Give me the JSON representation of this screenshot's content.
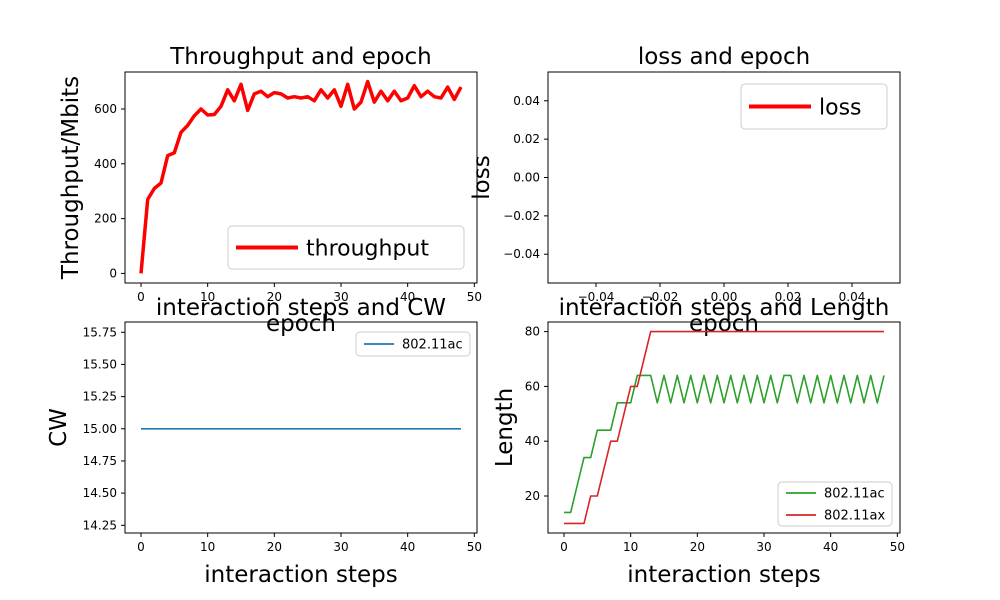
{
  "chart_data": [
    {
      "type": "line",
      "title": "Throughput and epoch",
      "xlabel": "epoch",
      "ylabel": "Throughput/Mbits",
      "xlim": [
        -2.4,
        50.4
      ],
      "ylim": [
        -35,
        735
      ],
      "xticks": [
        0,
        10,
        20,
        30,
        40,
        50
      ],
      "yticks": [
        0,
        200,
        400,
        600
      ],
      "legend": "lower-right",
      "series": [
        {
          "name": "throughput",
          "color": "#ff0000",
          "x": [
            0,
            1,
            2,
            3,
            4,
            5,
            6,
            7,
            8,
            9,
            10,
            11,
            12,
            13,
            14,
            15,
            16,
            17,
            18,
            19,
            20,
            21,
            22,
            23,
            24,
            25,
            26,
            27,
            28,
            29,
            30,
            31,
            32,
            33,
            34,
            35,
            36,
            37,
            38,
            39,
            40,
            41,
            42,
            43,
            44,
            45,
            46,
            47,
            48
          ],
          "values": [
            0,
            270,
            310,
            330,
            430,
            440,
            515,
            540,
            575,
            600,
            578,
            580,
            610,
            670,
            630,
            690,
            595,
            655,
            665,
            645,
            660,
            655,
            640,
            645,
            640,
            645,
            630,
            670,
            640,
            670,
            610,
            690,
            600,
            625,
            700,
            625,
            665,
            630,
            665,
            630,
            640,
            685,
            645,
            665,
            645,
            640,
            680,
            635,
            680
          ]
        }
      ]
    },
    {
      "type": "line",
      "title": "loss and epoch",
      "xlabel": "epoch",
      "ylabel": "loss",
      "xlim": [
        -0.055,
        0.055
      ],
      "ylim": [
        -0.055,
        0.055
      ],
      "xticks": [
        "−0.04",
        "−0.02",
        "0.00",
        "0.02",
        "0.04"
      ],
      "yticks": [
        "−0.04",
        "−0.02",
        "0.00",
        "0.02",
        "0.04"
      ],
      "xtick_values": [
        -0.04,
        -0.02,
        0,
        0.02,
        0.04
      ],
      "ytick_values": [
        -0.04,
        -0.02,
        0,
        0.02,
        0.04
      ],
      "legend": "upper-right",
      "series": [
        {
          "name": "loss",
          "color": "#ff0000",
          "x": [],
          "values": []
        }
      ]
    },
    {
      "type": "line",
      "title": "interaction steps and CW",
      "xlabel": "interaction steps",
      "ylabel": "CW",
      "xlim": [
        -2.4,
        50.4
      ],
      "ylim": [
        14.19,
        15.83
      ],
      "xticks": [
        0,
        10,
        20,
        30,
        40,
        50
      ],
      "yticks": [
        "14.25",
        "14.50",
        "14.75",
        "15.00",
        "15.25",
        "15.50",
        "15.75"
      ],
      "ytick_values": [
        14.25,
        14.5,
        14.75,
        15.0,
        15.25,
        15.5,
        15.75
      ],
      "legend": "upper-right",
      "series": [
        {
          "name": "802.11ac",
          "color": "#1f77b4",
          "x": [
            0,
            48
          ],
          "values": [
            15,
            15
          ]
        }
      ]
    },
    {
      "type": "line",
      "title": "interaction steps and Length",
      "xlabel": "interaction steps",
      "ylabel": "Length",
      "xlim": [
        -2.4,
        50.4
      ],
      "ylim": [
        6.5,
        83.5
      ],
      "xticks": [
        0,
        10,
        20,
        30,
        40,
        50
      ],
      "yticks": [
        20,
        40,
        60,
        80
      ],
      "legend": "lower-right",
      "series": [
        {
          "name": "802.11ac",
          "color": "#2ca02c",
          "x": [
            0,
            1,
            2,
            3,
            4,
            5,
            6,
            7,
            8,
            9,
            10,
            11,
            12,
            13,
            14,
            15,
            16,
            17,
            18,
            19,
            20,
            21,
            22,
            23,
            24,
            25,
            26,
            27,
            28,
            29,
            30,
            31,
            32,
            33,
            34,
            35,
            36,
            37,
            38,
            39,
            40,
            41,
            42,
            43,
            44,
            45,
            46,
            47,
            48
          ],
          "values": [
            14,
            14,
            24,
            34,
            34,
            44,
            44,
            44,
            54,
            54,
            54,
            64,
            64,
            64,
            54,
            64,
            54,
            64,
            54,
            64,
            54,
            64,
            54,
            64,
            54,
            64,
            54,
            64,
            54,
            64,
            54,
            64,
            54,
            64,
            64,
            54,
            64,
            54,
            64,
            54,
            64,
            54,
            64,
            54,
            64,
            54,
            64,
            54,
            64
          ]
        },
        {
          "name": "802.11ax",
          "color": "#d62728",
          "x": [
            0,
            1,
            2,
            3,
            4,
            5,
            6,
            7,
            8,
            9,
            10,
            11,
            12,
            13,
            14,
            48
          ],
          "values": [
            10,
            10,
            10,
            10,
            20,
            20,
            30,
            40,
            40,
            50,
            60,
            60,
            70,
            80,
            80,
            80
          ]
        }
      ]
    }
  ]
}
